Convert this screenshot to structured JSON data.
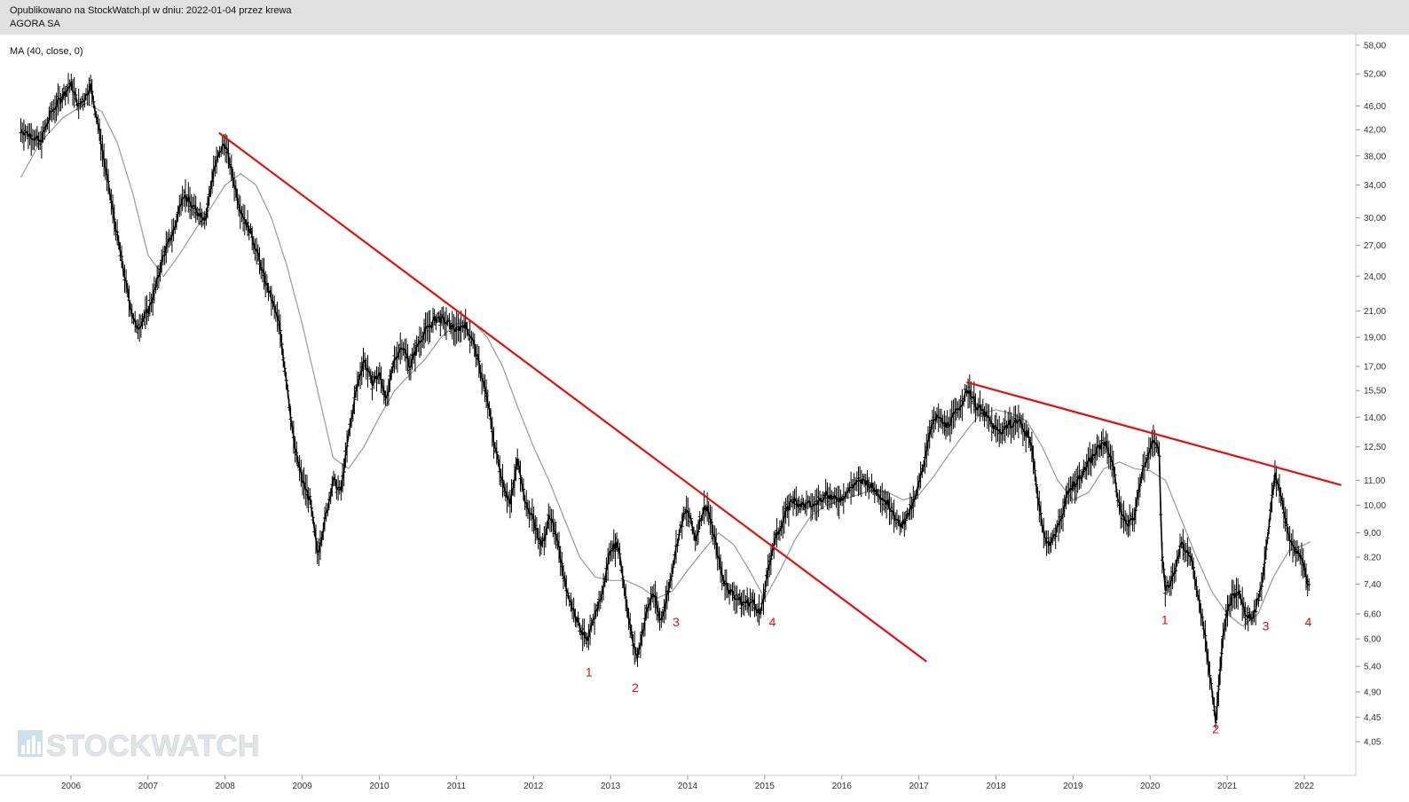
{
  "header": {
    "published_line": "Opublikowano na StockWatch.pl w dniu: 2022-01-04 przez krewa",
    "ticker": "AGORA SA"
  },
  "indicator_label": "MA (40, close, 0)",
  "watermark": "STOCKWATCH",
  "colors": {
    "price": "#000000",
    "ma": "#999999",
    "trendline": "#e01010",
    "wave_label": "#d01010",
    "header_bg": "#e1e1e1"
  },
  "chart_data": {
    "type": "line",
    "scale": "log",
    "x_range": [
      2005.35,
      2022.6
    ],
    "ylim": [
      3.85,
      59.0
    ],
    "yticks": [
      "58,00",
      "52,00",
      "46,00",
      "42,00",
      "38,00",
      "34,00",
      "30,00",
      "27,00",
      "24,00",
      "21,00",
      "19,00",
      "17,00",
      "15,50",
      "14,00",
      "12,50",
      "11,00",
      "10,00",
      "9,00",
      "8,20",
      "7,40",
      "6,60",
      "6,00",
      "5,40",
      "4,90",
      "4,45",
      "4,05"
    ],
    "xticks": [
      2006,
      2007,
      2008,
      2009,
      2010,
      2011,
      2012,
      2013,
      2014,
      2015,
      2016,
      2017,
      2018,
      2019,
      2020,
      2021,
      2022
    ],
    "price_series": {
      "name": "",
      "points": [
        [
          2005.35,
          42
        ],
        [
          2005.5,
          41
        ],
        [
          2005.6,
          40
        ],
        [
          2005.75,
          45
        ],
        [
          2005.9,
          48
        ],
        [
          2006.0,
          50
        ],
        [
          2006.1,
          46
        ],
        [
          2006.2,
          48
        ],
        [
          2006.25,
          50
        ],
        [
          2006.35,
          43
        ],
        [
          2006.45,
          36
        ],
        [
          2006.6,
          28
        ],
        [
          2006.75,
          22
        ],
        [
          2006.85,
          19.6
        ],
        [
          2007.0,
          21
        ],
        [
          2007.1,
          23
        ],
        [
          2007.2,
          26
        ],
        [
          2007.35,
          29
        ],
        [
          2007.45,
          33
        ],
        [
          2007.6,
          31
        ],
        [
          2007.75,
          30
        ],
        [
          2007.85,
          36
        ],
        [
          2007.95,
          39
        ],
        [
          2008.0,
          40
        ],
        [
          2008.1,
          35
        ],
        [
          2008.2,
          31
        ],
        [
          2008.35,
          28
        ],
        [
          2008.5,
          24
        ],
        [
          2008.6,
          22
        ],
        [
          2008.7,
          20
        ],
        [
          2008.8,
          16
        ],
        [
          2008.9,
          12.5
        ],
        [
          2009.0,
          11
        ],
        [
          2009.1,
          10.2
        ],
        [
          2009.2,
          8.3
        ],
        [
          2009.3,
          9.5
        ],
        [
          2009.4,
          11
        ],
        [
          2009.5,
          10.5
        ],
        [
          2009.6,
          13
        ],
        [
          2009.7,
          15.5
        ],
        [
          2009.8,
          17.5
        ],
        [
          2009.9,
          16
        ],
        [
          2010.0,
          16.5
        ],
        [
          2010.1,
          15
        ],
        [
          2010.2,
          17.5
        ],
        [
          2010.3,
          18.5
        ],
        [
          2010.4,
          17
        ],
        [
          2010.5,
          18.5
        ],
        [
          2010.6,
          19.5
        ],
        [
          2010.75,
          20.5
        ],
        [
          2010.9,
          20
        ],
        [
          2011.0,
          19.5
        ],
        [
          2011.1,
          20
        ],
        [
          2011.2,
          19
        ],
        [
          2011.3,
          17
        ],
        [
          2011.4,
          15
        ],
        [
          2011.5,
          12.5
        ],
        [
          2011.6,
          11
        ],
        [
          2011.7,
          10
        ],
        [
          2011.8,
          12
        ],
        [
          2011.9,
          10
        ],
        [
          2012.0,
          9.5
        ],
        [
          2012.1,
          8.5
        ],
        [
          2012.2,
          9.5
        ],
        [
          2012.3,
          9
        ],
        [
          2012.4,
          7.5
        ],
        [
          2012.5,
          6.8
        ],
        [
          2012.6,
          6.3
        ],
        [
          2012.7,
          5.9
        ],
        [
          2012.8,
          6.6
        ],
        [
          2012.9,
          7.2
        ],
        [
          2013.0,
          8.5
        ],
        [
          2013.1,
          8.6
        ],
        [
          2013.2,
          7
        ],
        [
          2013.3,
          5.8
        ],
        [
          2013.35,
          5.6
        ],
        [
          2013.45,
          6.5
        ],
        [
          2013.55,
          7.2
        ],
        [
          2013.65,
          6.4
        ],
        [
          2013.75,
          7.2
        ],
        [
          2013.85,
          8.5
        ],
        [
          2013.95,
          9.6
        ],
        [
          2014.0,
          9.8
        ],
        [
          2014.1,
          8.8
        ],
        [
          2014.2,
          9.8
        ],
        [
          2014.25,
          10
        ],
        [
          2014.35,
          8.8
        ],
        [
          2014.45,
          7.6
        ],
        [
          2014.55,
          7.2
        ],
        [
          2014.7,
          6.9
        ],
        [
          2014.85,
          6.9
        ],
        [
          2014.95,
          6.6
        ],
        [
          2015.0,
          7.2
        ],
        [
          2015.1,
          8.5
        ],
        [
          2015.2,
          9.2
        ],
        [
          2015.35,
          10.2
        ],
        [
          2015.5,
          10
        ],
        [
          2015.65,
          10
        ],
        [
          2015.8,
          10.5
        ],
        [
          2015.9,
          10.2
        ],
        [
          2016.0,
          10.3
        ],
        [
          2016.15,
          10.8
        ],
        [
          2016.3,
          11
        ],
        [
          2016.5,
          10.4
        ],
        [
          2016.65,
          9.9
        ],
        [
          2016.75,
          9.2
        ],
        [
          2016.85,
          9.6
        ],
        [
          2016.95,
          10.2
        ],
        [
          2017.05,
          11.5
        ],
        [
          2017.15,
          13.5
        ],
        [
          2017.25,
          14
        ],
        [
          2017.35,
          13.5
        ],
        [
          2017.45,
          14
        ],
        [
          2017.55,
          14.8
        ],
        [
          2017.65,
          15.6
        ],
        [
          2017.75,
          14.6
        ],
        [
          2017.85,
          14.2
        ],
        [
          2017.95,
          13.6
        ],
        [
          2018.05,
          13.2
        ],
        [
          2018.15,
          13.6
        ],
        [
          2018.3,
          13.8
        ],
        [
          2018.45,
          12.8
        ],
        [
          2018.55,
          10.2
        ],
        [
          2018.65,
          8.6
        ],
        [
          2018.75,
          8.8
        ],
        [
          2018.85,
          9.6
        ],
        [
          2018.95,
          10.6
        ],
        [
          2019.1,
          11.2
        ],
        [
          2019.25,
          12
        ],
        [
          2019.4,
          12.8
        ],
        [
          2019.5,
          12
        ],
        [
          2019.6,
          10
        ],
        [
          2019.7,
          9.2
        ],
        [
          2019.8,
          9.6
        ],
        [
          2019.9,
          11.5
        ],
        [
          2020.05,
          12.8
        ],
        [
          2020.12,
          12.2
        ],
        [
          2020.15,
          8.5
        ],
        [
          2020.2,
          7.2
        ],
        [
          2020.3,
          7.6
        ],
        [
          2020.4,
          8.6
        ],
        [
          2020.5,
          8.4
        ],
        [
          2020.6,
          7.4
        ],
        [
          2020.7,
          6.2
        ],
        [
          2020.78,
          5.2
        ],
        [
          2020.85,
          4.4
        ],
        [
          2020.95,
          6.2
        ],
        [
          2021.05,
          7
        ],
        [
          2021.15,
          7.2
        ],
        [
          2021.25,
          6.5
        ],
        [
          2021.35,
          6.6
        ],
        [
          2021.45,
          7.4
        ],
        [
          2021.55,
          9.5
        ],
        [
          2021.62,
          11.2
        ],
        [
          2021.7,
          10.4
        ],
        [
          2021.8,
          8.8
        ],
        [
          2021.9,
          8.4
        ],
        [
          2022.0,
          8
        ],
        [
          2022.05,
          7.2
        ],
        [
          2022.08,
          7.8
        ]
      ]
    },
    "ma_series": {
      "name": "MA (40, close, 0)",
      "points": [
        [
          2005.35,
          35
        ],
        [
          2005.6,
          40
        ],
        [
          2005.9,
          44
        ],
        [
          2006.2,
          46.5
        ],
        [
          2006.4,
          45
        ],
        [
          2006.6,
          40
        ],
        [
          2006.8,
          33
        ],
        [
          2007.0,
          26
        ],
        [
          2007.2,
          24
        ],
        [
          2007.4,
          26
        ],
        [
          2007.6,
          28.5
        ],
        [
          2007.8,
          31
        ],
        [
          2008.0,
          34
        ],
        [
          2008.2,
          35.5
        ],
        [
          2008.4,
          34
        ],
        [
          2008.6,
          30
        ],
        [
          2008.8,
          25
        ],
        [
          2009.0,
          20
        ],
        [
          2009.2,
          15.5
        ],
        [
          2009.4,
          12
        ],
        [
          2009.6,
          11.5
        ],
        [
          2009.8,
          12.5
        ],
        [
          2010.0,
          14
        ],
        [
          2010.2,
          15.5
        ],
        [
          2010.4,
          16.5
        ],
        [
          2010.6,
          17.5
        ],
        [
          2010.8,
          19
        ],
        [
          2011.0,
          20
        ],
        [
          2011.2,
          20.2
        ],
        [
          2011.4,
          19
        ],
        [
          2011.6,
          17
        ],
        [
          2011.8,
          14.5
        ],
        [
          2012.0,
          12.5
        ],
        [
          2012.2,
          11
        ],
        [
          2012.4,
          9.5
        ],
        [
          2012.6,
          8.2
        ],
        [
          2012.8,
          7.6
        ],
        [
          2013.0,
          7.5
        ],
        [
          2013.2,
          7.5
        ],
        [
          2013.4,
          7.3
        ],
        [
          2013.6,
          7.0
        ],
        [
          2013.8,
          7.2
        ],
        [
          2014.0,
          7.8
        ],
        [
          2014.2,
          8.4
        ],
        [
          2014.4,
          9.0
        ],
        [
          2014.6,
          8.6
        ],
        [
          2014.8,
          7.8
        ],
        [
          2015.0,
          7.0
        ],
        [
          2015.2,
          7.8
        ],
        [
          2015.4,
          8.8
        ],
        [
          2015.6,
          9.6
        ],
        [
          2015.8,
          10
        ],
        [
          2016.0,
          10.2
        ],
        [
          2016.2,
          10.4
        ],
        [
          2016.4,
          10.6
        ],
        [
          2016.6,
          10.5
        ],
        [
          2016.8,
          10.2
        ],
        [
          2017.0,
          10.4
        ],
        [
          2017.2,
          11.2
        ],
        [
          2017.4,
          12.2
        ],
        [
          2017.6,
          13.2
        ],
        [
          2017.8,
          14.2
        ],
        [
          2018.0,
          14.4
        ],
        [
          2018.2,
          14.2
        ],
        [
          2018.4,
          13.8
        ],
        [
          2018.6,
          12.5
        ],
        [
          2018.8,
          11
        ],
        [
          2019.0,
          10.2
        ],
        [
          2019.2,
          10.5
        ],
        [
          2019.4,
          11.5
        ],
        [
          2019.6,
          11.8
        ],
        [
          2019.8,
          11.5
        ],
        [
          2020.0,
          11.4
        ],
        [
          2020.2,
          11
        ],
        [
          2020.4,
          9.5
        ],
        [
          2020.6,
          8.2
        ],
        [
          2020.8,
          7.2
        ],
        [
          2021.0,
          6.6
        ],
        [
          2021.2,
          6.3
        ],
        [
          2021.4,
          6.6
        ],
        [
          2021.6,
          7.6
        ],
        [
          2021.8,
          8.4
        ],
        [
          2022.0,
          8.6
        ],
        [
          2022.08,
          8.7
        ]
      ]
    },
    "trendlines": [
      {
        "from": [
          2007.92,
          41.5
        ],
        "to": [
          2012.1,
          16
        ],
        "extend_to": [
          2017.1,
          5.5
        ]
      },
      {
        "from": [
          2017.62,
          16
        ],
        "to": [
          2020.12,
          13.2
        ],
        "extend_to": [
          2022.48,
          10.8
        ]
      }
    ],
    "wave_labels": [
      {
        "text": "1",
        "x": 2012.72,
        "y": 5.2
      },
      {
        "text": "2",
        "x": 2013.32,
        "y": 4.9
      },
      {
        "text": "3",
        "x": 2013.85,
        "y": 6.3
      },
      {
        "text": "4",
        "x": 2015.1,
        "y": 6.3
      },
      {
        "text": "1",
        "x": 2020.19,
        "y": 6.35
      },
      {
        "text": "2",
        "x": 2020.85,
        "y": 4.18
      },
      {
        "text": "3",
        "x": 2021.5,
        "y": 6.2
      },
      {
        "text": "4",
        "x": 2022.05,
        "y": 6.3
      }
    ]
  }
}
